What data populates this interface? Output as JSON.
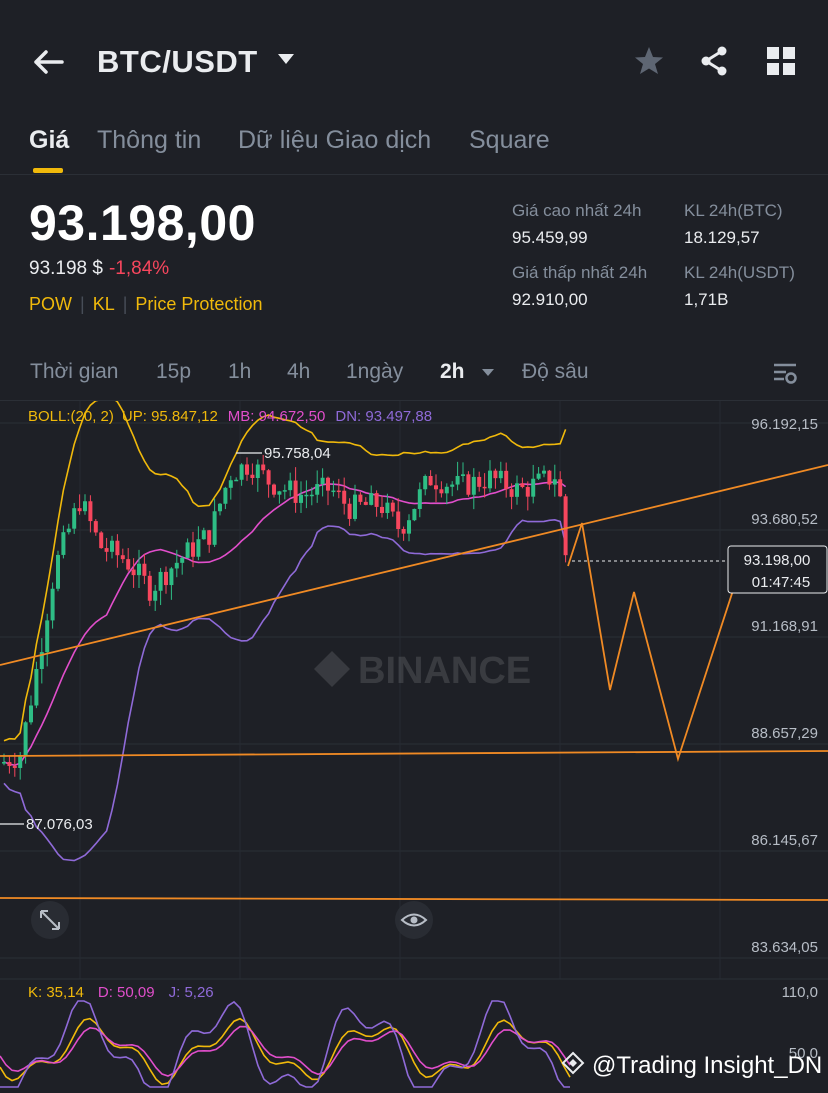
{
  "header": {
    "pair": "BTC/USDT",
    "icons": [
      "back-arrow-icon",
      "caret-down-icon",
      "star-icon",
      "share-icon",
      "grid-icon"
    ]
  },
  "tabs": [
    {
      "label": "Giá",
      "active": true
    },
    {
      "label": "Thông tin",
      "active": false
    },
    {
      "label": "Dữ liệu Giao dịch",
      "active": false
    },
    {
      "label": "Square",
      "active": false
    }
  ],
  "ticker": {
    "last_price": "93.198,00",
    "usd_price": "93.198 $",
    "change": "-1,84%",
    "tags": [
      "POW",
      "KL",
      "Price Protection"
    ]
  },
  "stats": {
    "high_label": "Giá cao nhất 24h",
    "high_value": "95.459,99",
    "low_label": "Giá thấp nhất 24h",
    "low_value": "92.910,00",
    "vol_btc_label": "KL 24h(BTC)",
    "vol_btc_value": "18.129,57",
    "vol_usdt_label": "KL 24h(USDT)",
    "vol_usdt_value": "1,71B"
  },
  "timeframes": {
    "items": [
      "Thời gian",
      "15p",
      "1h",
      "4h",
      "1ngày",
      "2h",
      "Độ sâu"
    ],
    "active": "2h"
  },
  "chart_data": {
    "type": "candlestick",
    "boll": {
      "label": "BOLL:(20, 2)",
      "up": "UP: 95.847,12",
      "mb": "MB: 94.672,50",
      "dn": "DN: 93.497,88"
    },
    "y_ticks": [
      "96.192,15",
      "93.680,52",
      "91.168,91",
      "88.657,29",
      "86.145,67",
      "83.634,05"
    ],
    "y_tick_values": [
      96192.15,
      93680.52,
      91168.91,
      88657.29,
      86145.67,
      83634.05
    ],
    "ylim": [
      83634.05,
      96192.15
    ],
    "annotations": {
      "high": "95.758,04",
      "low": "87.076,03"
    },
    "current": {
      "price": "93.198,00",
      "countdown": "01:47:45"
    },
    "watermark": "BINANCE",
    "kdj": {
      "k": "K: 35,14",
      "d": "D: 50,09",
      "j": "J: 5,26",
      "top": "110,0",
      "mid": "50,0"
    },
    "credit": "@Trading Insight_DN",
    "colors": {
      "up": "#2ebd85",
      "down": "#f6465d",
      "boll_up": "#f0b90b",
      "boll_mb": "#e14ecb",
      "boll_dn": "#8f6ad8",
      "drawing": "#f08a24"
    }
  }
}
